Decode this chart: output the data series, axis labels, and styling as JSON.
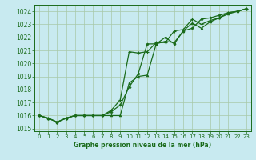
{
  "title": "Graphe pression niveau de la mer (hPa)",
  "bg_color": "#c8eaf0",
  "grid_color": "#a8c8a8",
  "line_color": "#1a6b1a",
  "xlim": [
    -0.5,
    23.5
  ],
  "ylim": [
    1014.8,
    1024.5
  ],
  "yticks": [
    1015,
    1016,
    1017,
    1018,
    1019,
    1020,
    1021,
    1022,
    1023,
    1024
  ],
  "xticks": [
    0,
    1,
    2,
    3,
    4,
    5,
    6,
    7,
    8,
    9,
    10,
    11,
    12,
    13,
    14,
    15,
    16,
    17,
    18,
    19,
    20,
    21,
    22,
    23
  ],
  "series1_x": [
    0,
    1,
    2,
    3,
    4,
    5,
    6,
    7,
    8,
    9,
    10,
    11,
    12,
    13,
    14,
    15,
    16,
    17,
    18,
    19,
    20,
    21,
    22,
    23
  ],
  "series1_y": [
    1016.0,
    1015.8,
    1015.5,
    1015.8,
    1016.0,
    1016.0,
    1016.0,
    1016.0,
    1016.0,
    1016.0,
    1018.5,
    1019.0,
    1019.1,
    1021.5,
    1021.7,
    1021.6,
    1022.5,
    1023.1,
    1022.7,
    1023.2,
    1023.5,
    1023.8,
    1024.0,
    1024.2
  ],
  "series2_x": [
    0,
    1,
    2,
    3,
    4,
    5,
    6,
    7,
    8,
    9,
    10,
    11,
    12,
    13,
    14,
    15,
    16,
    17,
    18,
    19,
    20,
    21,
    22,
    23
  ],
  "series2_y": [
    1016.0,
    1015.8,
    1015.5,
    1015.8,
    1016.0,
    1016.0,
    1016.0,
    1016.0,
    1016.4,
    1017.2,
    1020.9,
    1020.8,
    1020.9,
    1021.6,
    1021.6,
    1022.5,
    1022.6,
    1023.4,
    1023.0,
    1023.3,
    1023.5,
    1023.9,
    1024.0,
    1024.2
  ],
  "series3_x": [
    0,
    1,
    2,
    3,
    4,
    5,
    6,
    7,
    8,
    9,
    10,
    11,
    12,
    13,
    14,
    15,
    16,
    17,
    18,
    19,
    20,
    21,
    22,
    23
  ],
  "series3_y": [
    1016.0,
    1015.8,
    1015.5,
    1015.8,
    1016.0,
    1016.0,
    1016.0,
    1016.0,
    1016.3,
    1016.8,
    1018.2,
    1019.2,
    1021.5,
    1021.5,
    1022.0,
    1021.5,
    1022.5,
    1022.7,
    1023.4,
    1023.5,
    1023.7,
    1023.9,
    1024.0,
    1024.2
  ]
}
